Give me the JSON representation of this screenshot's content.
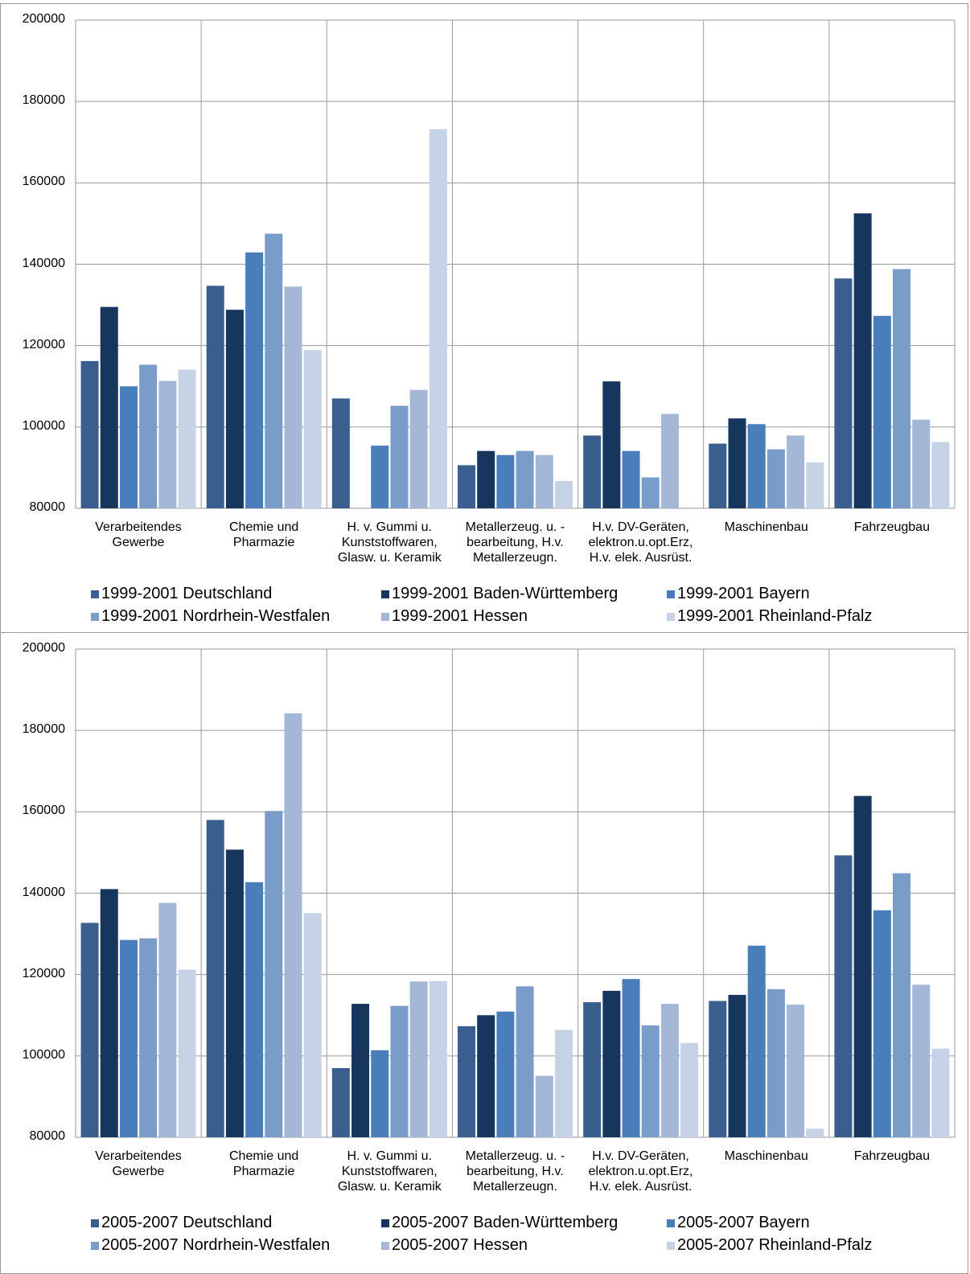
{
  "chart_data": [
    {
      "type": "bar",
      "categories": [
        "Verarbeitendes\nGewerbe",
        "Chemie und\nPharmazie",
        "H. v. Gummi u.\nKunststoffwaren,\nGlasw. u. Keramik",
        "Metallerzeug. u. -\nbearbeitung, H.v.\nMetallerzeugn.",
        "H.v. DV-Geräten,\nelektron.u.opt.Erz,\nH.v. elek. Ausrüst.",
        "Maschinenbau",
        "Fahrzeugbau"
      ],
      "series": [
        {
          "name": "1999-2001 Deutschland",
          "color": "#3a5f8f",
          "values": [
            116200,
            134700,
            107000,
            90600,
            97900,
            95900,
            136500
          ]
        },
        {
          "name": "1999-2001 Baden-Württemberg",
          "color": "#17365d",
          "values": [
            129500,
            128800,
            80000,
            94100,
            111200,
            102100,
            152500
          ]
        },
        {
          "name": "1999-2001 Bayern",
          "color": "#4a7ebb",
          "values": [
            110000,
            142900,
            95400,
            93100,
            94100,
            100700,
            127300
          ]
        },
        {
          "name": "1999-2001 Nordrhein-Westfalen",
          "color": "#7a9cc8",
          "values": [
            115300,
            147500,
            105200,
            94100,
            87600,
            94500,
            138800
          ]
        },
        {
          "name": "1999-2001 Hessen",
          "color": "#a5b7d6",
          "values": [
            111300,
            134500,
            109100,
            93100,
            103200,
            97900,
            101800
          ]
        },
        {
          "name": "1999-2001 Rheinland-Pfalz",
          "color": "#c6d2e5",
          "values": [
            114100,
            118900,
            173200,
            86700,
            80000,
            91300,
            96300
          ]
        }
      ],
      "ylim": [
        80000,
        200000
      ],
      "yticks": [
        80000,
        100000,
        120000,
        140000,
        160000,
        180000,
        200000
      ],
      "grid": true
    },
    {
      "type": "bar",
      "categories": [
        "Verarbeitendes\nGewerbe",
        "Chemie und\nPharmazie",
        "H. v. Gummi u.\nKunststoffwaren,\nGlasw. u. Keramik",
        "Metallerzeug. u. -\nbearbeitung, H.v.\nMetallerzeugn.",
        "H.v. DV-Geräten,\nelektron.u.opt.Erz,\nH.v. elek. Ausrüst.",
        "Maschinenbau",
        "Fahrzeugbau"
      ],
      "series": [
        {
          "name": "2005-2007 Deutschland",
          "color": "#3a5f8f",
          "values": [
            132700,
            158000,
            97000,
            107300,
            113200,
            113500,
            149300
          ]
        },
        {
          "name": "2005-2007 Baden-Württemberg",
          "color": "#17365d",
          "values": [
            141000,
            150700,
            112800,
            110000,
            116000,
            115000,
            163900
          ]
        },
        {
          "name": "2005-2007 Bayern",
          "color": "#4a7ebb",
          "values": [
            128500,
            142700,
            101400,
            110900,
            118900,
            127100,
            135800
          ]
        },
        {
          "name": "2005-2007 Nordrhein-Westfalen",
          "color": "#7a9cc8",
          "values": [
            128900,
            160200,
            112300,
            117100,
            107500,
            116400,
            144900
          ]
        },
        {
          "name": "2005-2007 Hessen",
          "color": "#a5b7d6",
          "values": [
            137600,
            184200,
            118300,
            95100,
            112800,
            112600,
            117500
          ]
        },
        {
          "name": "2005-2007 Rheinland-Pfalz",
          "color": "#c6d2e5",
          "values": [
            121200,
            135100,
            118400,
            106400,
            103200,
            82100,
            101800
          ]
        }
      ],
      "ylim": [
        80000,
        200000
      ],
      "yticks": [
        80000,
        100000,
        120000,
        140000,
        160000,
        180000,
        200000
      ],
      "grid": true
    }
  ]
}
